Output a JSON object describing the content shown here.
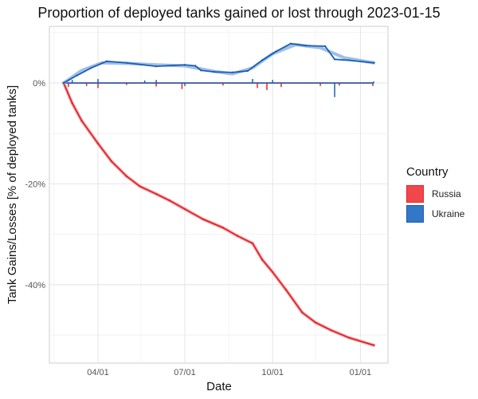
{
  "chart_data": {
    "type": "line",
    "title": "Proportion of deployed tanks gained or lost through 2023-01-15",
    "xlabel": "Date",
    "ylabel": "Tank Gains/Losses [% of deployed tanks]",
    "x_ticks": [
      "04/01",
      "07/01",
      "10/01",
      "01/01"
    ],
    "x_tick_dates": [
      "2022-04-01",
      "2022-07-01",
      "2022-10-01",
      "2023-01-01"
    ],
    "y_ticks": [
      0,
      -20,
      -40
    ],
    "y_tick_labels": [
      "0%",
      "-20%",
      "-40%"
    ],
    "xlim": [
      "2022-02-10",
      "2023-01-24"
    ],
    "ylim": [
      -55.5,
      11.2
    ],
    "grid": true,
    "legend": {
      "title": "Country",
      "placement": "right"
    },
    "series": [
      {
        "name": "Russia",
        "color": "#e8232a",
        "fill": "#ef474c",
        "trend_color": "#f0a0a2",
        "points": [
          [
            "2022-02-24",
            0
          ],
          [
            "2022-03-05",
            -4
          ],
          [
            "2022-03-15",
            -7.5
          ],
          [
            "2022-04-01",
            -12
          ],
          [
            "2022-04-15",
            -15.5
          ],
          [
            "2022-05-01",
            -18.5
          ],
          [
            "2022-05-15",
            -20.5
          ],
          [
            "2022-06-01",
            -22
          ],
          [
            "2022-06-15",
            -23.3
          ],
          [
            "2022-07-01",
            -25
          ],
          [
            "2022-07-20",
            -27
          ],
          [
            "2022-08-10",
            -28.7
          ],
          [
            "2022-08-25",
            -30.3
          ],
          [
            "2022-09-10",
            -31.8
          ],
          [
            "2022-09-20",
            -35
          ],
          [
            "2022-10-01",
            -37.5
          ],
          [
            "2022-10-15",
            -41
          ],
          [
            "2022-11-01",
            -45.5
          ],
          [
            "2022-11-15",
            -47.5
          ],
          [
            "2022-12-01",
            -49
          ],
          [
            "2022-12-20",
            -50.5
          ],
          [
            "2023-01-15",
            -52
          ]
        ],
        "daily_changes": [
          [
            "2022-03-01",
            -0.8
          ],
          [
            "2022-03-20",
            -0.6
          ],
          [
            "2022-04-01",
            -1
          ],
          [
            "2022-05-01",
            -0.4
          ],
          [
            "2022-06-01",
            -0.7
          ],
          [
            "2022-06-28",
            -1.2
          ],
          [
            "2022-08-10",
            -0.5
          ],
          [
            "2022-09-15",
            -1
          ],
          [
            "2022-09-25",
            -1.4
          ],
          [
            "2022-10-10",
            -0.8
          ],
          [
            "2022-11-20",
            -0.6
          ],
          [
            "2022-12-10",
            -0.5
          ],
          [
            "2023-01-14",
            -0.6
          ]
        ]
      },
      {
        "name": "Ukraine",
        "color": "#1a5fb4",
        "fill": "#3277c8",
        "trend_color": "#8fb4e3",
        "points": [
          [
            "2022-02-24",
            0
          ],
          [
            "2022-03-10",
            1.5
          ],
          [
            "2022-03-25",
            3.0
          ],
          [
            "2022-04-10",
            4.3
          ],
          [
            "2022-05-01",
            4.0
          ],
          [
            "2022-06-01",
            3.3
          ],
          [
            "2022-07-01",
            3.6
          ],
          [
            "2022-07-12",
            3.4
          ],
          [
            "2022-07-18",
            2.5
          ],
          [
            "2022-08-01",
            2.2
          ],
          [
            "2022-08-20",
            2.1
          ],
          [
            "2022-09-05",
            2.4
          ],
          [
            "2022-09-20",
            4.5
          ],
          [
            "2022-10-05",
            6.3
          ],
          [
            "2022-10-20",
            7.8
          ],
          [
            "2022-11-05",
            7.4
          ],
          [
            "2022-11-25",
            7.3
          ],
          [
            "2022-12-05",
            4.7
          ],
          [
            "2022-12-20",
            4.5
          ],
          [
            "2023-01-15",
            4.0
          ]
        ],
        "trend": [
          [
            "2022-02-24",
            0
          ],
          [
            "2022-03-15",
            2.5
          ],
          [
            "2022-04-05",
            4.0
          ],
          [
            "2022-05-01",
            3.9
          ],
          [
            "2022-06-01",
            3.6
          ],
          [
            "2022-07-01",
            3.4
          ],
          [
            "2022-08-01",
            2.3
          ],
          [
            "2022-08-20",
            1.8
          ],
          [
            "2022-09-10",
            3.0
          ],
          [
            "2022-10-01",
            5.8
          ],
          [
            "2022-10-25",
            7.6
          ],
          [
            "2022-11-20",
            7.0
          ],
          [
            "2022-12-15",
            5.0
          ],
          [
            "2023-01-15",
            4.0
          ]
        ],
        "daily_changes": [
          [
            "2022-03-05",
            0.6
          ],
          [
            "2022-04-01",
            0.8
          ],
          [
            "2022-05-20",
            0.5
          ],
          [
            "2022-06-01",
            0.6
          ],
          [
            "2022-07-01",
            -0.6
          ],
          [
            "2022-09-10",
            0.8
          ],
          [
            "2022-10-01",
            0.6
          ],
          [
            "2022-12-05",
            -2.8
          ],
          [
            "2023-01-15",
            0.3
          ]
        ]
      }
    ]
  }
}
